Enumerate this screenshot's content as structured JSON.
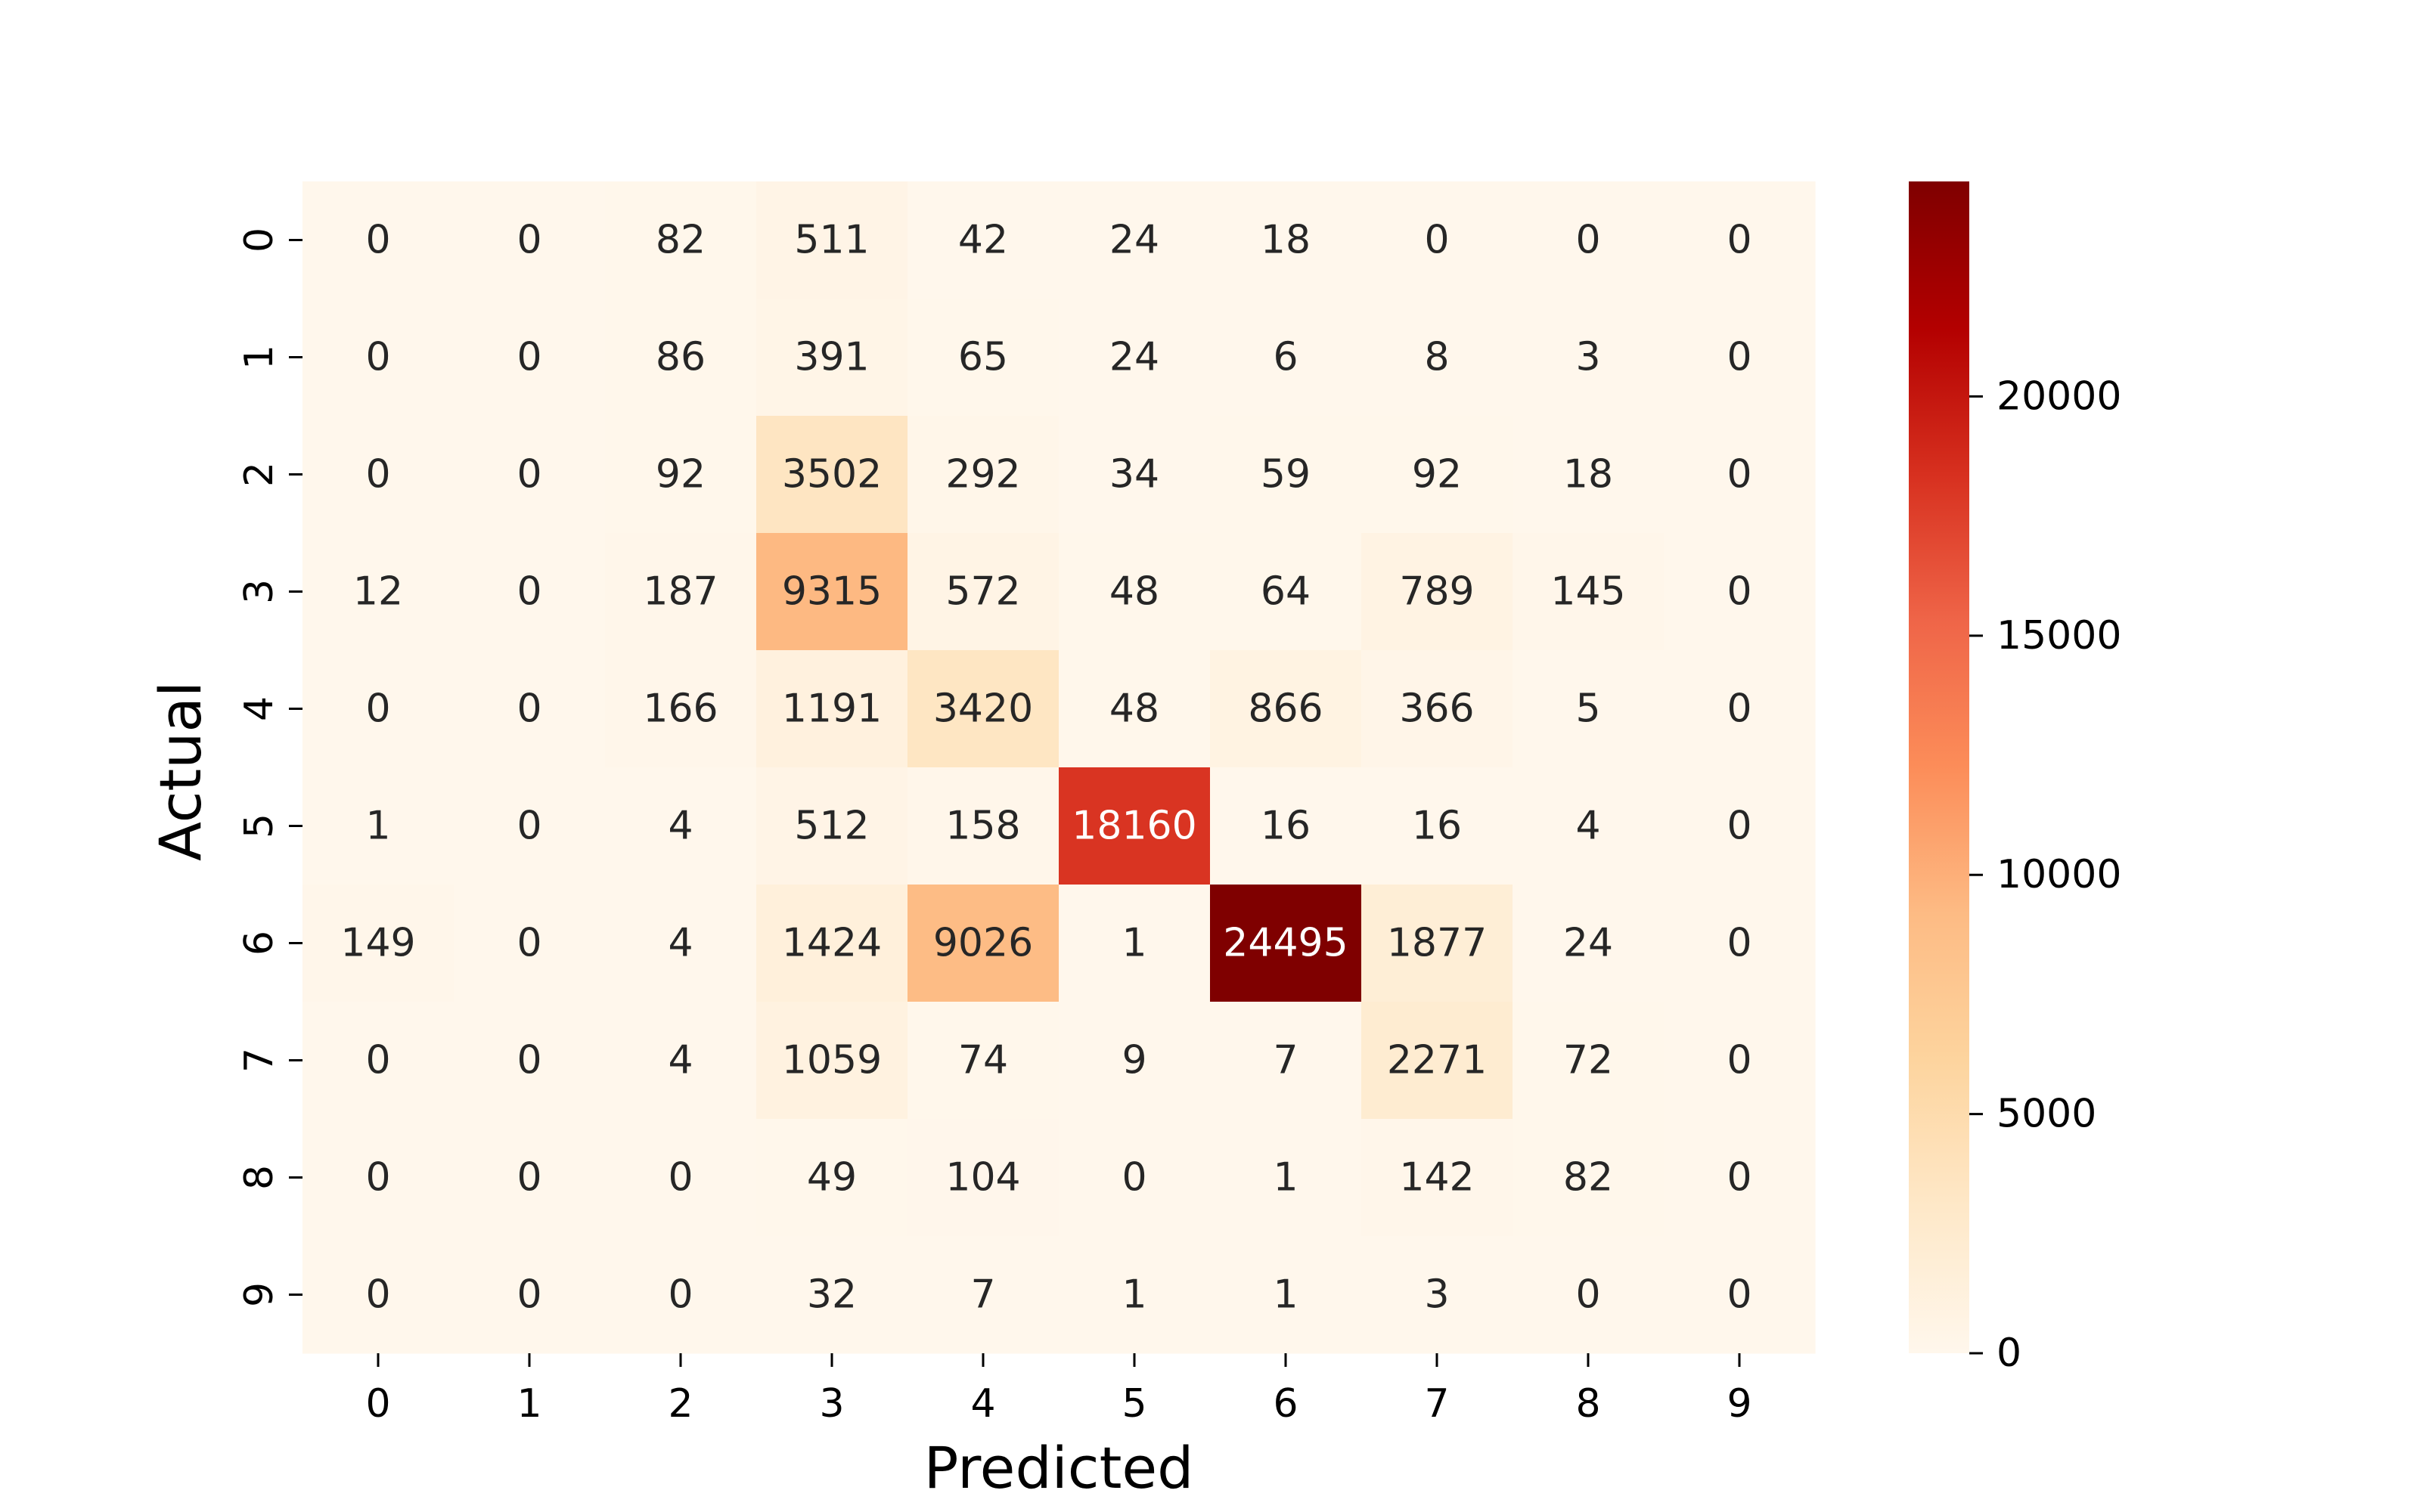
{
  "chart_data": {
    "type": "heatmap",
    "title": "",
    "xlabel": "Predicted",
    "ylabel": "Actual",
    "x_categories": [
      "0",
      "1",
      "2",
      "3",
      "4",
      "5",
      "6",
      "7",
      "8",
      "9"
    ],
    "y_categories": [
      "0",
      "1",
      "2",
      "3",
      "4",
      "5",
      "6",
      "7",
      "8",
      "9"
    ],
    "values": [
      [
        0,
        0,
        82,
        511,
        42,
        24,
        18,
        0,
        0,
        0
      ],
      [
        0,
        0,
        86,
        391,
        65,
        24,
        6,
        8,
        3,
        0
      ],
      [
        0,
        0,
        92,
        3502,
        292,
        34,
        59,
        92,
        18,
        0
      ],
      [
        12,
        0,
        187,
        9315,
        572,
        48,
        64,
        789,
        145,
        0
      ],
      [
        0,
        0,
        166,
        1191,
        3420,
        48,
        866,
        366,
        5,
        0
      ],
      [
        1,
        0,
        4,
        512,
        158,
        18160,
        16,
        16,
        4,
        0
      ],
      [
        149,
        0,
        4,
        1424,
        9026,
        1,
        24495,
        1877,
        24,
        0
      ],
      [
        0,
        0,
        4,
        1059,
        74,
        9,
        7,
        2271,
        72,
        0
      ],
      [
        0,
        0,
        0,
        49,
        104,
        0,
        1,
        142,
        82,
        0
      ],
      [
        0,
        0,
        0,
        32,
        7,
        1,
        1,
        3,
        0,
        0
      ]
    ],
    "colorbar": {
      "min": 0,
      "max": 24495,
      "ticks": [
        0,
        5000,
        10000,
        15000,
        20000
      ],
      "colormap": "OrRd",
      "stops": [
        "#fff7ec",
        "#fee8c8",
        "#fdd49e",
        "#fdbb84",
        "#fc8d59",
        "#ef6548",
        "#d7301f",
        "#b30000",
        "#7f0000"
      ]
    },
    "annotations": true,
    "grid": false
  }
}
